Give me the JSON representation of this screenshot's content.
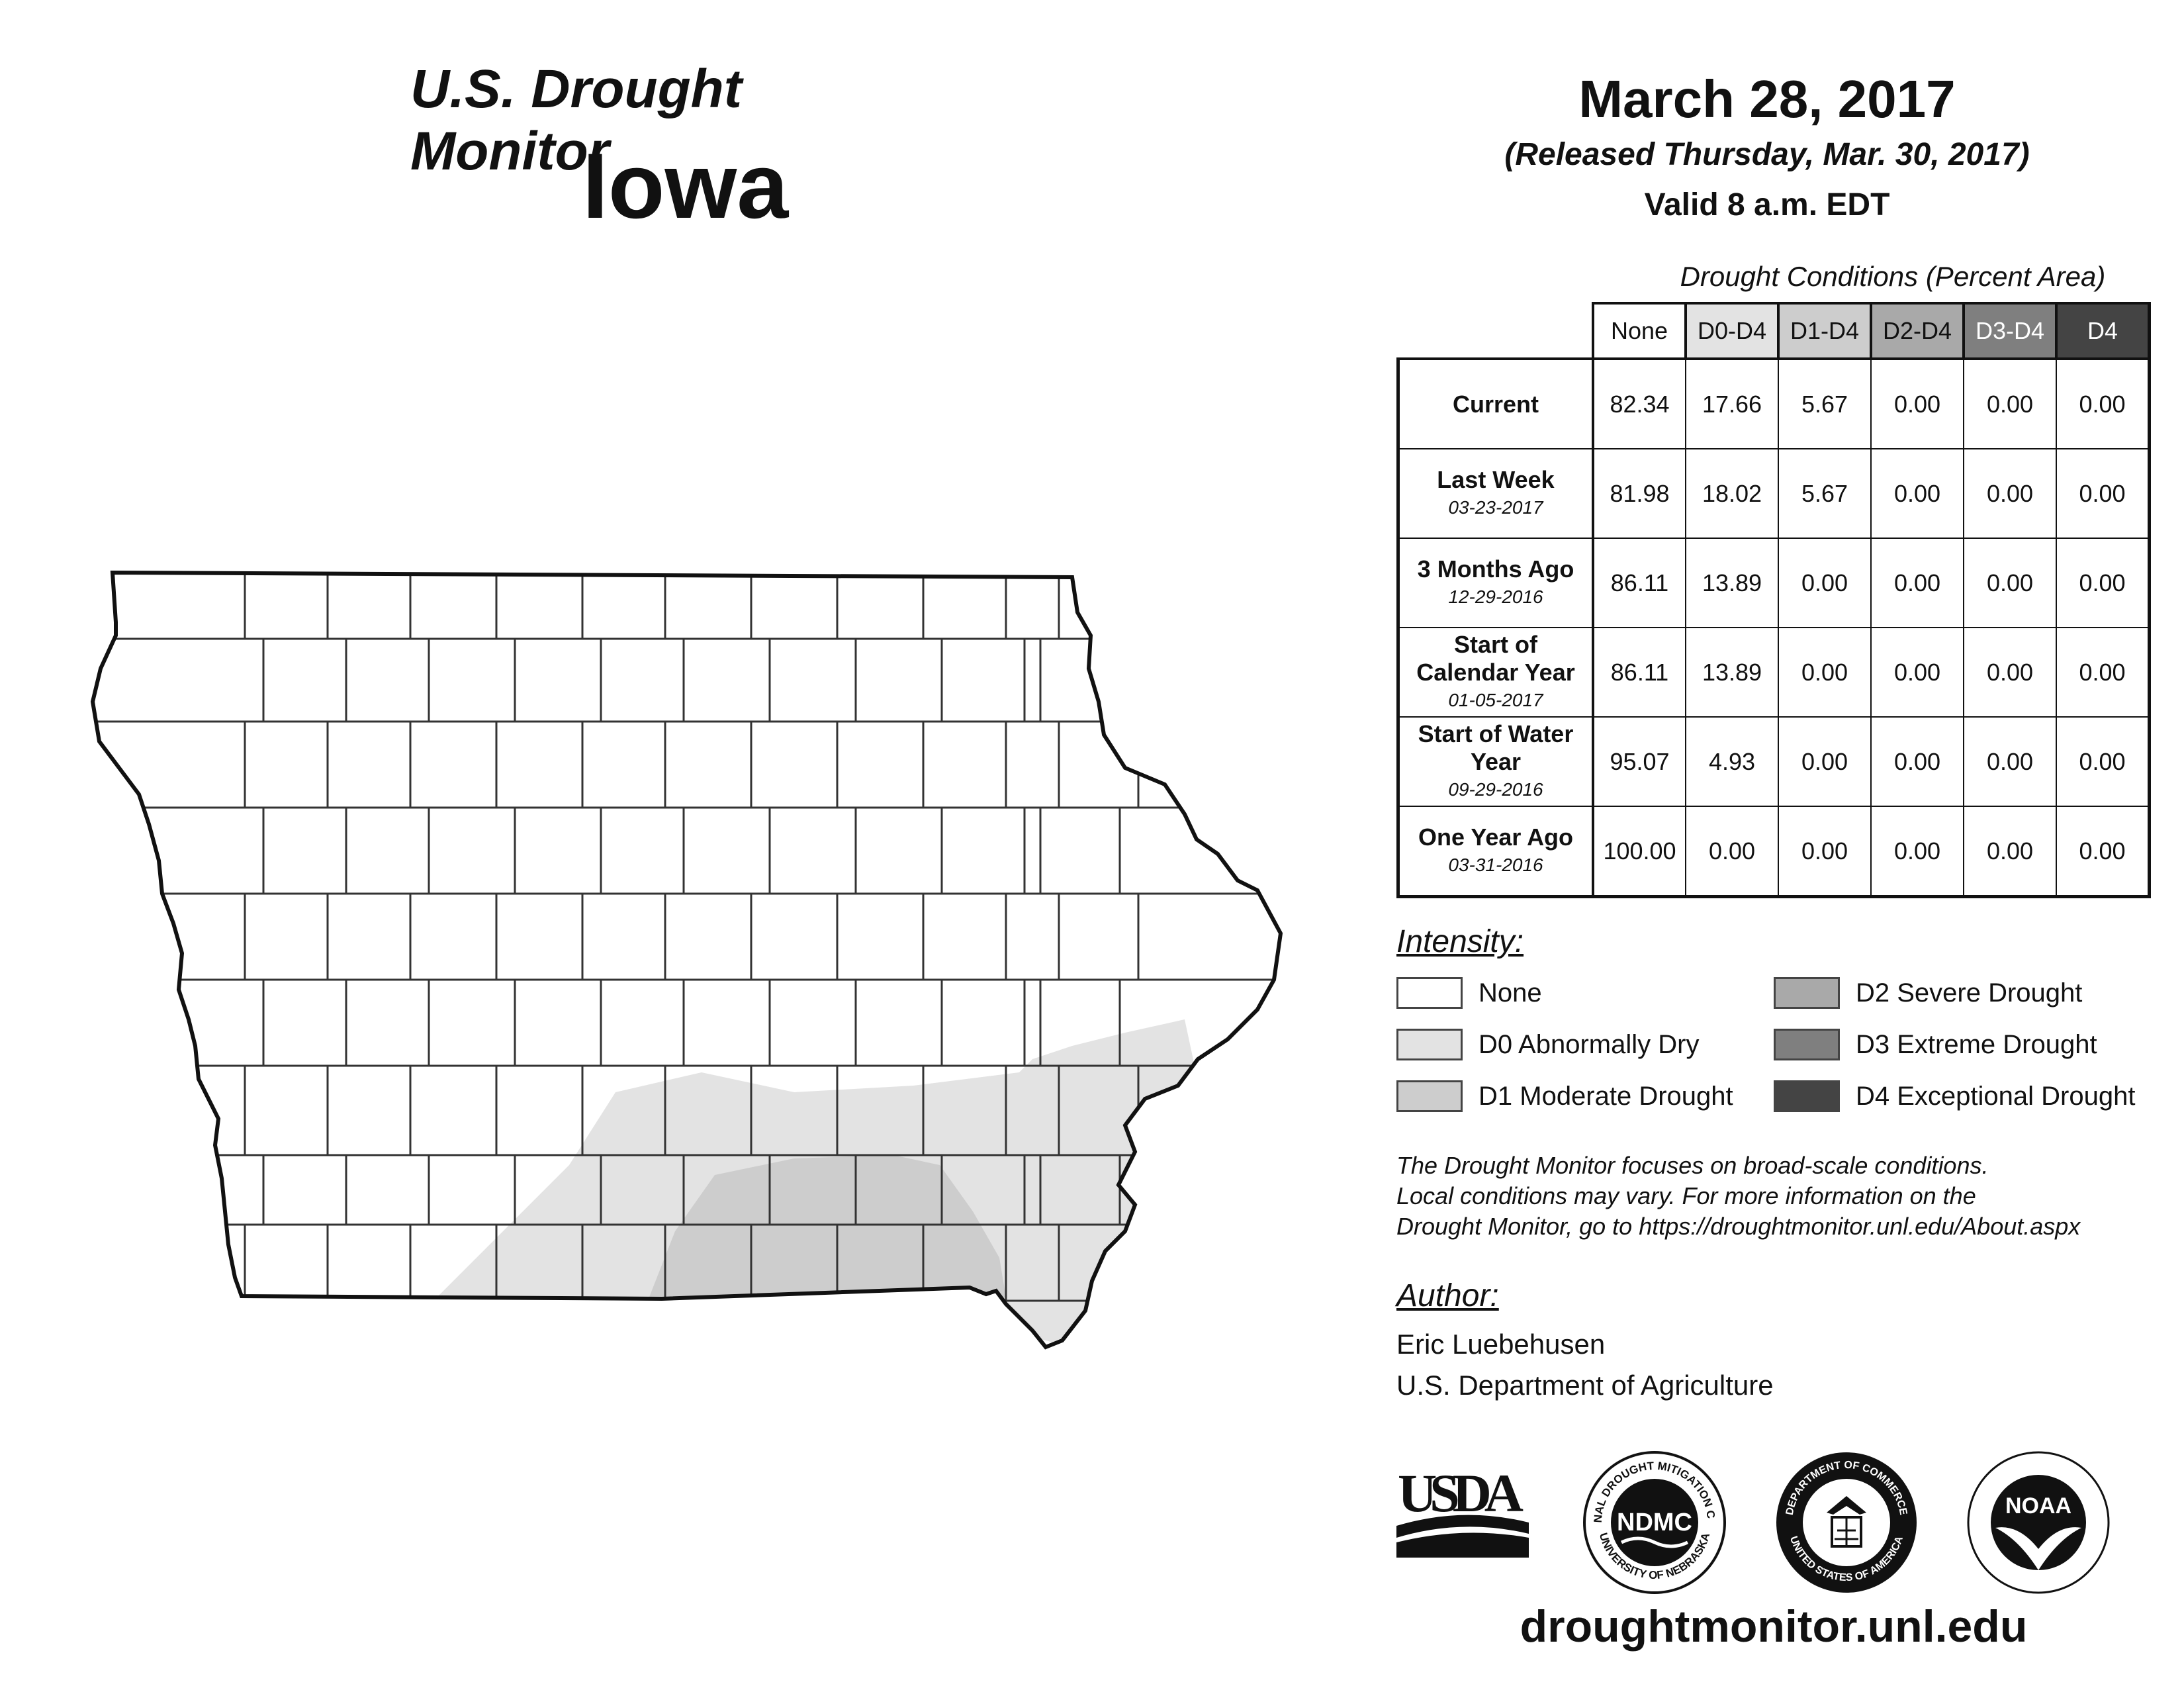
{
  "header": {
    "title": "U.S. Drought Monitor",
    "state": "Iowa",
    "date": "March 28, 2017",
    "released": "(Released Thursday, Mar. 30, 2017)",
    "valid": "Valid 8 a.m. EDT"
  },
  "table": {
    "caption": "Drought Conditions (Percent Area)",
    "columns": [
      {
        "label": "None",
        "bg": "#ffffff",
        "fg": "#111111"
      },
      {
        "label": "D0-D4",
        "bg": "#e3e3e3",
        "fg": "#111111"
      },
      {
        "label": "D1-D4",
        "bg": "#cdcdcd",
        "fg": "#111111"
      },
      {
        "label": "D2-D4",
        "bg": "#a9a9a9",
        "fg": "#111111"
      },
      {
        "label": "D3-D4",
        "bg": "#7f7f7f",
        "fg": "#ffffff"
      },
      {
        "label": "D4",
        "bg": "#444444",
        "fg": "#ffffff"
      }
    ],
    "rows": [
      {
        "label": "Current",
        "date": "",
        "values": [
          "82.34",
          "17.66",
          "5.67",
          "0.00",
          "0.00",
          "0.00"
        ]
      },
      {
        "label": "Last Week",
        "date": "03-23-2017",
        "values": [
          "81.98",
          "18.02",
          "5.67",
          "0.00",
          "0.00",
          "0.00"
        ]
      },
      {
        "label": "3 Months Ago",
        "date": "12-29-2016",
        "values": [
          "86.11",
          "13.89",
          "0.00",
          "0.00",
          "0.00",
          "0.00"
        ]
      },
      {
        "label": "Start of Calendar Year",
        "date": "01-05-2017",
        "values": [
          "86.11",
          "13.89",
          "0.00",
          "0.00",
          "0.00",
          "0.00"
        ]
      },
      {
        "label": "Start of Water Year",
        "date": "09-29-2016",
        "values": [
          "95.07",
          "4.93",
          "0.00",
          "0.00",
          "0.00",
          "0.00"
        ]
      },
      {
        "label": "One Year Ago",
        "date": "03-31-2016",
        "values": [
          "100.00",
          "0.00",
          "0.00",
          "0.00",
          "0.00",
          "0.00"
        ]
      }
    ]
  },
  "legend": {
    "heading": "Intensity:",
    "items": [
      {
        "label": "None",
        "color": "#ffffff"
      },
      {
        "label": "D0 Abnormally Dry",
        "color": "#e3e3e3"
      },
      {
        "label": "D1 Moderate Drought",
        "color": "#cdcdcd"
      },
      {
        "label": "D2 Severe Drought",
        "color": "#a9a9a9"
      },
      {
        "label": "D3 Extreme Drought",
        "color": "#7f7f7f"
      },
      {
        "label": "D4 Exceptional Drought",
        "color": "#444444"
      }
    ]
  },
  "note": {
    "line1": "The Drought Monitor focuses on broad-scale conditions.",
    "line2": "Local conditions may vary. For more information on the",
    "line3": "Drought Monitor, go to https://droughtmonitor.unl.edu/About.aspx"
  },
  "author": {
    "heading": "Author:",
    "name": "Eric Luebehusen",
    "org": "U.S. Department of Agriculture"
  },
  "logos": {
    "usda": "USDA",
    "ndmc": "NDMC",
    "ndmc_top": "NATIONAL DROUGHT MITIGATION CENTER",
    "ndmc_bottom": "UNIVERSITY OF NEBRASKA",
    "doc_top": "DEPARTMENT OF COMMERCE",
    "doc_bottom": "UNITED STATES OF AMERICA",
    "noaa": "NOAA"
  },
  "footer": {
    "site": "droughtmonitor.unl.edu"
  }
}
